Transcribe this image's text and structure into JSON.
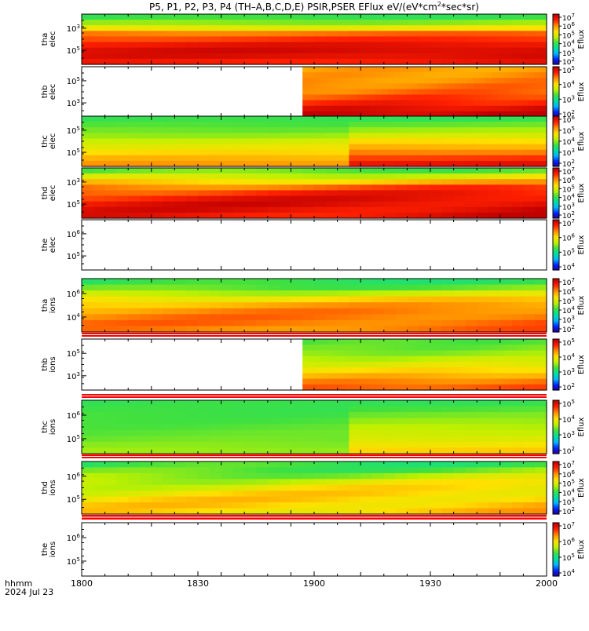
{
  "title_parts": [
    "P5, P1, P2, P3, P4 (TH–A,B,C,D,E) PSIR,PSER EFlux eV/(eV*cm",
    "2",
    "*sec*sr)"
  ],
  "time_axis": {
    "ticks": [
      "1800",
      "1830",
      "1900",
      "1930",
      "2000"
    ],
    "unit_label": "hhmm",
    "date_label": "2024 Jul 23"
  },
  "colors": {
    "bar_min": "#200080",
    "bar_scale": [
      "#2a0080",
      "#0020ff",
      "#00b4ff",
      "#00e0a0",
      "#40e040",
      "#c0f000",
      "#ffe000",
      "#ff9000",
      "#ff2000",
      "#c00000"
    ],
    "separator_red": "#ff0000",
    "no_data": "#ffffff"
  },
  "chart_data": [
    {
      "type": "heatmap",
      "probe": "tha",
      "species": "elec",
      "ylabel": [
        "tha",
        "elec"
      ],
      "y_ticks": [
        {
          "base": "10",
          "exp": "3"
        },
        {
          "base": "10",
          "exp": "5"
        }
      ],
      "colorbar": {
        "label": "Eflux",
        "ticks": [
          {
            "base": "10",
            "exp": "7"
          },
          {
            "base": "10",
            "exp": "6"
          },
          {
            "base": "10",
            "exp": "5"
          },
          {
            "base": "10",
            "exp": "4"
          },
          {
            "base": "10",
            "exp": "3"
          },
          {
            "base": "10",
            "exp": "2"
          }
        ]
      },
      "data_start": 1800,
      "data_end": 2000,
      "row_profile": [
        0.42,
        0.5,
        0.62,
        0.8,
        0.86,
        0.92,
        0.95,
        0.94,
        0.9
      ],
      "drift": 0.02
    },
    {
      "type": "heatmap",
      "probe": "thb",
      "species": "elec",
      "ylabel": [
        "thb",
        "elec"
      ],
      "y_ticks": [
        {
          "base": "10",
          "exp": "5"
        },
        {
          "base": "10",
          "exp": "3"
        }
      ],
      "colorbar": {
        "label": "Eflux",
        "ticks": [
          {
            "base": "10",
            "exp": "5"
          },
          {
            "base": "10",
            "exp": "4"
          },
          {
            "base": "10",
            "exp": "3"
          },
          {
            "base": "10",
            "exp": "2"
          }
        ]
      },
      "data_start": 1895,
      "data_end": 2000,
      "row_profile": [
        0.74,
        0.75,
        0.76,
        0.78,
        0.8,
        0.84,
        0.88,
        0.93,
        0.97
      ],
      "drift": 0.03
    },
    {
      "type": "heatmap",
      "probe": "thc",
      "species": "elec",
      "ylabel": [
        "thc",
        "elec"
      ],
      "y_ticks": [
        {
          "base": "10",
          "exp": "5"
        },
        {
          "base": "10",
          "exp": "5"
        }
      ],
      "colorbar": {
        "label": "Eflux",
        "ticks": [
          {
            "base": "10",
            "exp": "6"
          },
          {
            "base": "10",
            "exp": "5"
          },
          {
            "base": "10",
            "exp": "4"
          },
          {
            "base": "10",
            "exp": "3"
          },
          {
            "base": "10",
            "exp": "2"
          }
        ]
      },
      "data_start": 1800,
      "data_end": 2000,
      "row_profile": [
        0.42,
        0.45,
        0.48,
        0.52,
        0.58,
        0.62,
        0.67,
        0.72,
        0.76
      ],
      "drift": 0.01
    },
    {
      "type": "heatmap",
      "probe": "thd",
      "species": "elec",
      "ylabel": [
        "thd",
        "elec"
      ],
      "y_ticks": [
        {
          "base": "10",
          "exp": "3"
        },
        {
          "base": "10",
          "exp": "5"
        }
      ],
      "colorbar": {
        "label": "Eflux",
        "ticks": [
          {
            "base": "10",
            "exp": "7"
          },
          {
            "base": "10",
            "exp": "6"
          },
          {
            "base": "10",
            "exp": "5"
          },
          {
            "base": "10",
            "exp": "4"
          },
          {
            "base": "10",
            "exp": "3"
          },
          {
            "base": "10",
            "exp": "2"
          }
        ]
      },
      "data_start": 1800,
      "data_end": 2000,
      "row_profile": [
        0.45,
        0.56,
        0.68,
        0.8,
        0.86,
        0.9,
        0.92,
        0.92,
        0.91
      ],
      "drift": 0.05
    },
    {
      "type": "heatmap",
      "probe": "the",
      "species": "elec",
      "ylabel": [
        "the",
        "elec"
      ],
      "y_ticks": [
        {
          "base": "10",
          "exp": "6"
        },
        {
          "base": "10",
          "exp": "5"
        }
      ],
      "colorbar": {
        "label": "Eflux",
        "ticks": [
          {
            "base": "10",
            "exp": "7"
          },
          {
            "base": "10",
            "exp": "6"
          },
          {
            "base": "10",
            "exp": "5"
          },
          {
            "base": "10",
            "exp": "4"
          }
        ]
      },
      "data_start": null,
      "data_end": null,
      "row_profile": [],
      "drift": 0
    },
    {
      "type": "heatmap",
      "probe": "tha",
      "species": "ions",
      "ylabel": [
        "tha",
        "ions"
      ],
      "y_ticks": [
        {
          "base": "10",
          "exp": "6"
        },
        {
          "base": "10",
          "exp": "4"
        }
      ],
      "colorbar": {
        "label": "Eflux",
        "ticks": [
          {
            "base": "10",
            "exp": "7"
          },
          {
            "base": "10",
            "exp": "6"
          },
          {
            "base": "10",
            "exp": "5"
          },
          {
            "base": "10",
            "exp": "4"
          },
          {
            "base": "10",
            "exp": "3"
          },
          {
            "base": "10",
            "exp": "2"
          }
        ]
      },
      "data_start": 1800,
      "data_end": 2000,
      "row_profile": [
        0.4,
        0.45,
        0.55,
        0.65,
        0.72,
        0.76,
        0.78,
        0.79,
        0.78
      ],
      "drift": 0.04
    },
    {
      "type": "heatmap",
      "probe": "thb",
      "species": "ions",
      "ylabel": [
        "thb",
        "ions"
      ],
      "y_ticks": [
        {
          "base": "10",
          "exp": "5"
        },
        {
          "base": "10",
          "exp": "3"
        }
      ],
      "colorbar": {
        "label": "Eflux",
        "ticks": [
          {
            "base": "10",
            "exp": "5"
          },
          {
            "base": "10",
            "exp": "4"
          },
          {
            "base": "10",
            "exp": "3"
          },
          {
            "base": "10",
            "exp": "2"
          }
        ]
      },
      "data_start": 1895,
      "data_end": 2000,
      "row_profile": [
        0.45,
        0.47,
        0.5,
        0.55,
        0.6,
        0.66,
        0.72,
        0.78,
        0.82
      ],
      "drift": 0.02
    },
    {
      "type": "heatmap",
      "probe": "thc",
      "species": "ions",
      "ylabel": [
        "thc",
        "ions"
      ],
      "y_ticks": [
        {
          "base": "10",
          "exp": "6"
        },
        {
          "base": "10",
          "exp": "5"
        }
      ],
      "colorbar": {
        "label": "Eflux",
        "ticks": [
          {
            "base": "10",
            "exp": "5"
          },
          {
            "base": "10",
            "exp": "4"
          },
          {
            "base": "10",
            "exp": "3"
          },
          {
            "base": "10",
            "exp": "2"
          }
        ]
      },
      "data_start": 1800,
      "data_end": 2000,
      "row_profile": [
        0.42,
        0.43,
        0.44,
        0.45,
        0.46,
        0.47,
        0.48,
        0.5,
        0.52
      ],
      "drift": 0.01
    },
    {
      "type": "heatmap",
      "probe": "thd",
      "species": "ions",
      "ylabel": [
        "thd",
        "ions"
      ],
      "y_ticks": [
        {
          "base": "10",
          "exp": "6"
        },
        {
          "base": "10",
          "exp": "5"
        }
      ],
      "colorbar": {
        "label": "Eflux",
        "ticks": [
          {
            "base": "10",
            "exp": "7"
          },
          {
            "base": "10",
            "exp": "6"
          },
          {
            "base": "10",
            "exp": "5"
          },
          {
            "base": "10",
            "exp": "4"
          },
          {
            "base": "10",
            "exp": "3"
          },
          {
            "base": "10",
            "exp": "2"
          }
        ]
      },
      "data_start": 1800,
      "data_end": 2000,
      "row_profile": [
        0.4,
        0.44,
        0.5,
        0.56,
        0.6,
        0.63,
        0.65,
        0.66,
        0.66
      ],
      "drift": 0.06
    },
    {
      "type": "heatmap",
      "probe": "the",
      "species": "ions",
      "ylabel": [
        "the",
        "ions"
      ],
      "y_ticks": [
        {
          "base": "10",
          "exp": "6"
        },
        {
          "base": "10",
          "exp": "5"
        }
      ],
      "colorbar": {
        "label": "Eflux",
        "ticks": [
          {
            "base": "10",
            "exp": "7"
          },
          {
            "base": "10",
            "exp": "6"
          },
          {
            "base": "10",
            "exp": "5"
          },
          {
            "base": "10",
            "exp": "4"
          }
        ]
      },
      "data_start": null,
      "data_end": null,
      "row_profile": [],
      "drift": 0
    }
  ]
}
